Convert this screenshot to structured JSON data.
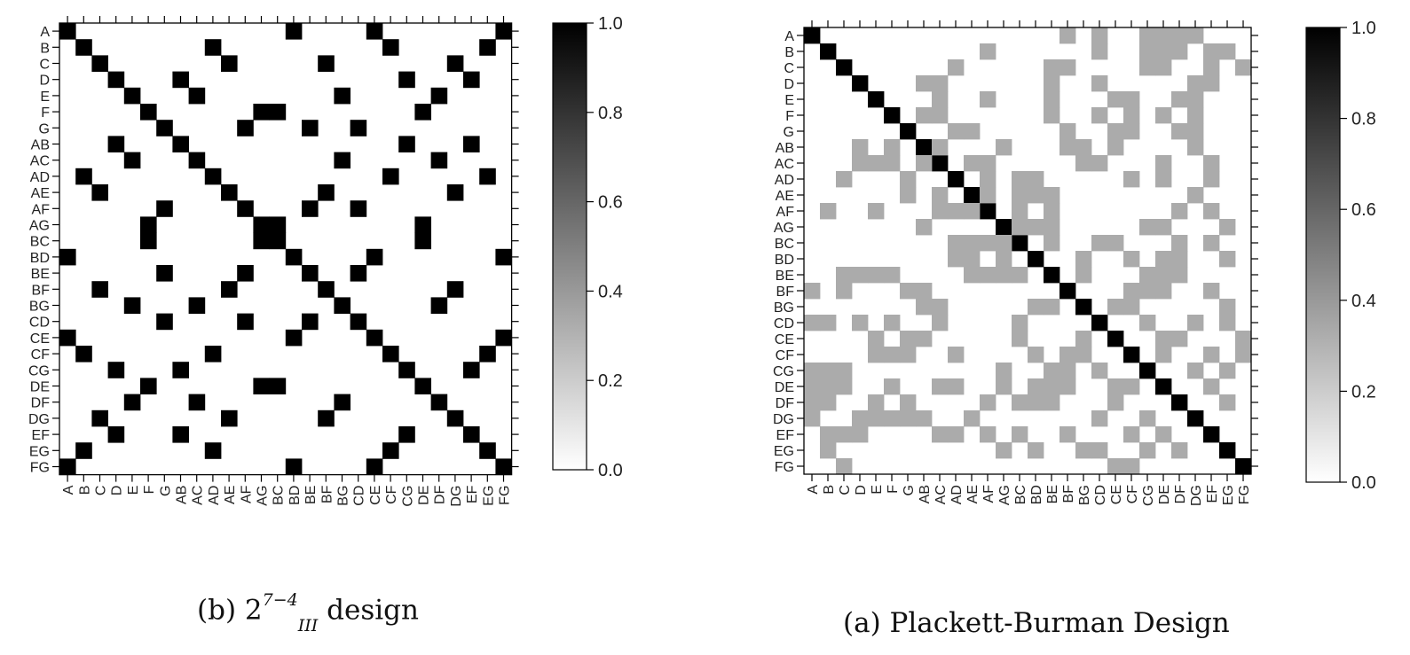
{
  "chart_data": [
    {
      "type": "heatmap",
      "xlabel": "",
      "ylabel": "",
      "title": "",
      "caption_prefix": "(b)",
      "caption_base": "2",
      "caption_sup": "7−4",
      "caption_sub": "III",
      "caption_suffix": "design",
      "labels": [
        "A",
        "B",
        "C",
        "D",
        "E",
        "F",
        "G",
        "AB",
        "AC",
        "AD",
        "AE",
        "AF",
        "AG",
        "BC",
        "BD",
        "BE",
        "BF",
        "BG",
        "CD",
        "CE",
        "CF",
        "CG",
        "DE",
        "DF",
        "DG",
        "EF",
        "EG",
        "FG"
      ],
      "value_range": [
        0,
        1
      ],
      "grid": false,
      "colorbar": {
        "ticks": [
          "0.0",
          "0.2",
          "0.4",
          "0.6",
          "0.8",
          "1.0"
        ],
        "low_color": "#ffffff",
        "high_color": "#000000"
      },
      "cell_values": [
        {
          "value": 1,
          "pairs": [
            [
              "A",
              "A"
            ],
            [
              "A",
              "BD"
            ],
            [
              "A",
              "CE"
            ],
            [
              "A",
              "FG"
            ],
            [
              "B",
              "B"
            ],
            [
              "B",
              "AD"
            ],
            [
              "B",
              "CF"
            ],
            [
              "B",
              "EG"
            ],
            [
              "C",
              "C"
            ],
            [
              "C",
              "AE"
            ],
            [
              "C",
              "BF"
            ],
            [
              "C",
              "DG"
            ],
            [
              "D",
              "D"
            ],
            [
              "D",
              "AB"
            ],
            [
              "D",
              "CG"
            ],
            [
              "D",
              "EF"
            ],
            [
              "E",
              "E"
            ],
            [
              "E",
              "AC"
            ],
            [
              "E",
              "BG"
            ],
            [
              "E",
              "DF"
            ],
            [
              "F",
              "F"
            ],
            [
              "F",
              "AG"
            ],
            [
              "F",
              "BC"
            ],
            [
              "F",
              "DE"
            ],
            [
              "G",
              "G"
            ],
            [
              "G",
              "AF"
            ],
            [
              "G",
              "BE"
            ],
            [
              "G",
              "CD"
            ],
            [
              "AB",
              "AB"
            ],
            [
              "AB",
              "CG"
            ],
            [
              "AB",
              "EF"
            ],
            [
              "AC",
              "AC"
            ],
            [
              "AC",
              "BG"
            ],
            [
              "AC",
              "DF"
            ],
            [
              "AD",
              "AD"
            ],
            [
              "AD",
              "CF"
            ],
            [
              "AD",
              "EG"
            ],
            [
              "AE",
              "AE"
            ],
            [
              "AE",
              "BF"
            ],
            [
              "AE",
              "DG"
            ],
            [
              "AF",
              "AF"
            ],
            [
              "AF",
              "BE"
            ],
            [
              "AF",
              "CD"
            ],
            [
              "AG",
              "AG"
            ],
            [
              "AG",
              "BC"
            ],
            [
              "AG",
              "DE"
            ],
            [
              "BC",
              "BC"
            ],
            [
              "BC",
              "DE"
            ],
            [
              "BD",
              "BD"
            ],
            [
              "BD",
              "CE"
            ],
            [
              "BD",
              "FG"
            ],
            [
              "BE",
              "BE"
            ],
            [
              "BE",
              "CD"
            ],
            [
              "BF",
              "BF"
            ],
            [
              "BF",
              "DG"
            ],
            [
              "BG",
              "BG"
            ],
            [
              "BG",
              "DF"
            ],
            [
              "CD",
              "CD"
            ],
            [
              "CE",
              "CE"
            ],
            [
              "CE",
              "FG"
            ],
            [
              "CF",
              "CF"
            ],
            [
              "CF",
              "EG"
            ],
            [
              "CG",
              "CG"
            ],
            [
              "CG",
              "EF"
            ],
            [
              "DE",
              "DE"
            ],
            [
              "DF",
              "DF"
            ],
            [
              "DG",
              "DG"
            ],
            [
              "EF",
              "EF"
            ],
            [
              "EG",
              "EG"
            ],
            [
              "FG",
              "FG"
            ]
          ]
        }
      ]
    },
    {
      "type": "heatmap",
      "xlabel": "",
      "ylabel": "",
      "title": "",
      "caption": "(a) Plackett-Burman Design",
      "labels": [
        "A",
        "B",
        "C",
        "D",
        "E",
        "F",
        "G",
        "AB",
        "AC",
        "AD",
        "AE",
        "AF",
        "AG",
        "BC",
        "BD",
        "BE",
        "BF",
        "BG",
        "CD",
        "CE",
        "CF",
        "CG",
        "DE",
        "DF",
        "DG",
        "EF",
        "EG",
        "FG"
      ],
      "value_range": [
        0,
        1
      ],
      "grid": false,
      "colorbar": {
        "ticks": [
          "0.0",
          "0.2",
          "0.4",
          "0.6",
          "0.8",
          "1.0"
        ],
        "low_color": "#ffffff",
        "high_color": "#000000"
      },
      "cell_values": [
        {
          "value": 1,
          "pairs": [
            [
              "A",
              "A"
            ],
            [
              "B",
              "B"
            ],
            [
              "C",
              "C"
            ],
            [
              "D",
              "D"
            ],
            [
              "E",
              "E"
            ],
            [
              "F",
              "F"
            ],
            [
              "G",
              "G"
            ],
            [
              "AB",
              "AB"
            ],
            [
              "AC",
              "AC"
            ],
            [
              "AD",
              "AD"
            ],
            [
              "AE",
              "AE"
            ],
            [
              "AF",
              "AF"
            ],
            [
              "AG",
              "AG"
            ],
            [
              "BC",
              "BC"
            ],
            [
              "BD",
              "BD"
            ],
            [
              "BE",
              "BE"
            ],
            [
              "BF",
              "BF"
            ],
            [
              "BG",
              "BG"
            ],
            [
              "CD",
              "CD"
            ],
            [
              "CE",
              "CE"
            ],
            [
              "CF",
              "CF"
            ],
            [
              "CG",
              "CG"
            ],
            [
              "DE",
              "DE"
            ],
            [
              "DF",
              "DF"
            ],
            [
              "DG",
              "DG"
            ],
            [
              "EF",
              "EF"
            ],
            [
              "EG",
              "EG"
            ],
            [
              "FG",
              "FG"
            ]
          ]
        },
        {
          "value": 0.33,
          "pairs": [
            [
              "A",
              "BF"
            ],
            [
              "A",
              "CD"
            ],
            [
              "A",
              "CG"
            ],
            [
              "A",
              "DE"
            ],
            [
              "A",
              "DF"
            ],
            [
              "A",
              "DG"
            ],
            [
              "B",
              "AF"
            ],
            [
              "B",
              "CD"
            ],
            [
              "B",
              "CG"
            ],
            [
              "B",
              "DE"
            ],
            [
              "B",
              "DF"
            ],
            [
              "B",
              "EF"
            ],
            [
              "B",
              "EG"
            ],
            [
              "C",
              "AD"
            ],
            [
              "C",
              "BE"
            ],
            [
              "C",
              "BF"
            ],
            [
              "C",
              "CG"
            ],
            [
              "C",
              "DE"
            ],
            [
              "C",
              "EF"
            ],
            [
              "C",
              "FG"
            ],
            [
              "D",
              "AB"
            ],
            [
              "D",
              "AC"
            ],
            [
              "D",
              "BE"
            ],
            [
              "D",
              "CD"
            ],
            [
              "D",
              "DG"
            ],
            [
              "D",
              "EF"
            ],
            [
              "E",
              "AC"
            ],
            [
              "E",
              "AF"
            ],
            [
              "E",
              "BE"
            ],
            [
              "E",
              "CE"
            ],
            [
              "E",
              "CF"
            ],
            [
              "E",
              "DF"
            ],
            [
              "E",
              "DG"
            ],
            [
              "F",
              "AB"
            ],
            [
              "F",
              "AC"
            ],
            [
              "F",
              "BE"
            ],
            [
              "F",
              "CD"
            ],
            [
              "F",
              "CF"
            ],
            [
              "F",
              "DE"
            ],
            [
              "F",
              "DG"
            ],
            [
              "G",
              "AD"
            ],
            [
              "G",
              "AE"
            ],
            [
              "G",
              "BF"
            ],
            [
              "G",
              "CE"
            ],
            [
              "G",
              "CF"
            ],
            [
              "G",
              "DF"
            ],
            [
              "G",
              "DG"
            ],
            [
              "AB",
              "AC"
            ],
            [
              "AB",
              "AG"
            ],
            [
              "AB",
              "BF"
            ],
            [
              "AB",
              "BG"
            ],
            [
              "AB",
              "CE"
            ],
            [
              "AB",
              "DG"
            ],
            [
              "AC",
              "AE"
            ],
            [
              "AC",
              "AF"
            ],
            [
              "AC",
              "BG"
            ],
            [
              "AC",
              "CD"
            ],
            [
              "AC",
              "DE"
            ],
            [
              "AC",
              "EF"
            ],
            [
              "AD",
              "AF"
            ],
            [
              "AD",
              "BC"
            ],
            [
              "AD",
              "BD"
            ],
            [
              "AD",
              "CF"
            ],
            [
              "AD",
              "DE"
            ],
            [
              "AD",
              "EF"
            ],
            [
              "AE",
              "AF"
            ],
            [
              "AE",
              "BC"
            ],
            [
              "AE",
              "BD"
            ],
            [
              "AE",
              "BE"
            ],
            [
              "AE",
              "DG"
            ],
            [
              "AF",
              "BC"
            ],
            [
              "AF",
              "BE"
            ],
            [
              "AF",
              "DF"
            ],
            [
              "AF",
              "EF"
            ],
            [
              "AG",
              "BC"
            ],
            [
              "AG",
              "BD"
            ],
            [
              "AG",
              "BE"
            ],
            [
              "AG",
              "CG"
            ],
            [
              "AG",
              "DE"
            ],
            [
              "AG",
              "EG"
            ],
            [
              "BC",
              "BE"
            ],
            [
              "BC",
              "CD"
            ],
            [
              "BC",
              "CE"
            ],
            [
              "BC",
              "DF"
            ],
            [
              "BC",
              "EF"
            ],
            [
              "BD",
              "BG"
            ],
            [
              "BD",
              "CF"
            ],
            [
              "BD",
              "DE"
            ],
            [
              "BD",
              "DF"
            ],
            [
              "BD",
              "EG"
            ],
            [
              "BE",
              "BG"
            ],
            [
              "BE",
              "CG"
            ],
            [
              "BE",
              "DE"
            ],
            [
              "BE",
              "DF"
            ],
            [
              "BF",
              "CF"
            ],
            [
              "BF",
              "CG"
            ],
            [
              "BF",
              "DE"
            ],
            [
              "BF",
              "EF"
            ],
            [
              "BG",
              "CE"
            ],
            [
              "BG",
              "CF"
            ],
            [
              "BG",
              "EG"
            ],
            [
              "CD",
              "CG"
            ],
            [
              "CD",
              "DG"
            ],
            [
              "CD",
              "EG"
            ],
            [
              "CE",
              "DE"
            ],
            [
              "CE",
              "DF"
            ],
            [
              "CE",
              "FG"
            ],
            [
              "CF",
              "DE"
            ],
            [
              "CF",
              "EF"
            ],
            [
              "CF",
              "FG"
            ],
            [
              "CG",
              "DG"
            ],
            [
              "CG",
              "EG"
            ],
            [
              "DE",
              "EF"
            ],
            [
              "DF",
              "EG"
            ]
          ]
        }
      ]
    }
  ]
}
